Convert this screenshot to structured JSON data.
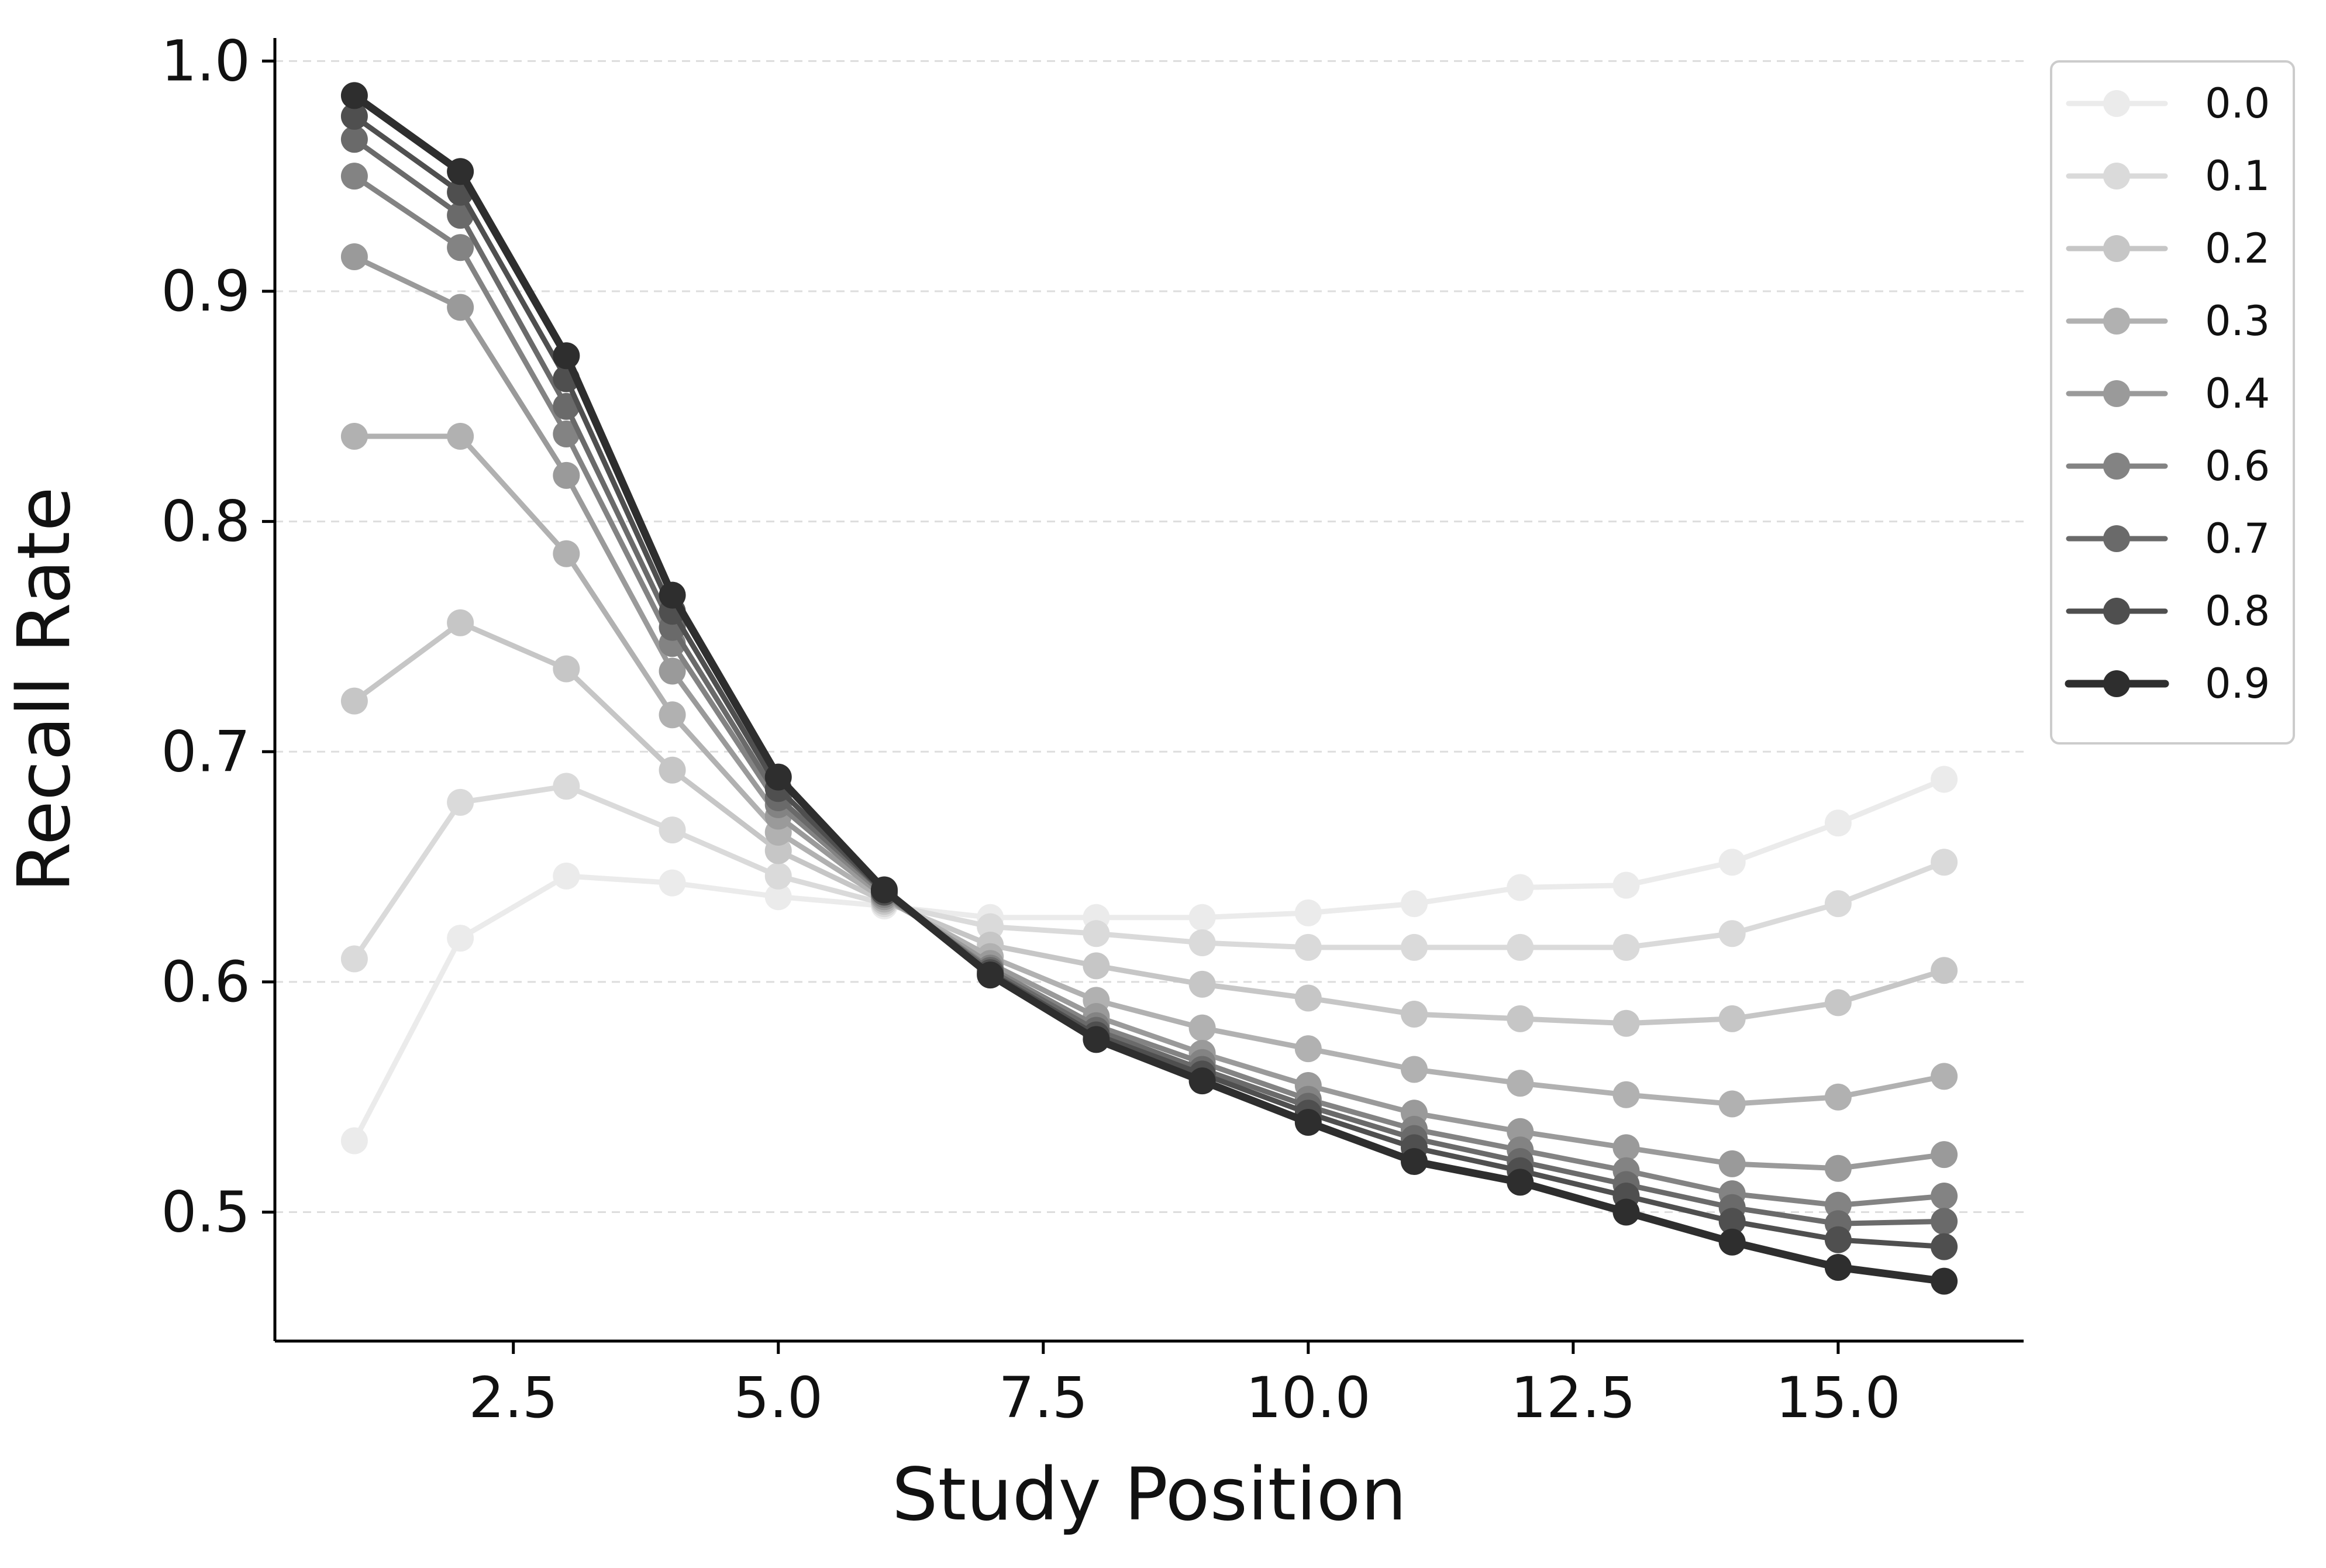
{
  "chart_data": {
    "type": "line",
    "title": "",
    "xlabel": "Study Position",
    "ylabel": "Recall Rate",
    "xlim": [
      0.25,
      16.75
    ],
    "ylim": [
      0.444,
      1.01
    ],
    "xticks": [
      2.5,
      5.0,
      7.5,
      10.0,
      12.5,
      15.0
    ],
    "xtick_labels": [
      "2.5",
      "5.0",
      "7.5",
      "10.0",
      "12.5",
      "15.0"
    ],
    "yticks": [
      0.5,
      0.6,
      0.7,
      0.8,
      0.9,
      1.0
    ],
    "ytick_labels": [
      "0.5",
      "0.6",
      "0.7",
      "0.8",
      "0.9",
      "1.0"
    ],
    "grid": "horizontal-dashed",
    "legend_position": "outside-top-right",
    "x": [
      1,
      2,
      3,
      4,
      5,
      6,
      7,
      8,
      9,
      10,
      11,
      12,
      13,
      14,
      15,
      16
    ],
    "series": [
      {
        "name": "0.0",
        "color": "#ebebeb",
        "values": [
          0.531,
          0.619,
          0.646,
          0.643,
          0.637,
          0.633,
          0.628,
          0.628,
          0.628,
          0.63,
          0.634,
          0.641,
          0.642,
          0.652,
          0.669,
          0.688
        ]
      },
      {
        "name": "0.1",
        "color": "#dadada",
        "values": [
          0.61,
          0.678,
          0.685,
          0.666,
          0.646,
          0.634,
          0.624,
          0.621,
          0.617,
          0.615,
          0.615,
          0.615,
          0.615,
          0.621,
          0.634,
          0.652
        ]
      },
      {
        "name": "0.2",
        "color": "#c6c6c6",
        "values": [
          0.722,
          0.756,
          0.736,
          0.692,
          0.657,
          0.635,
          0.616,
          0.607,
          0.599,
          0.593,
          0.586,
          0.584,
          0.582,
          0.584,
          0.591,
          0.605
        ]
      },
      {
        "name": "0.3",
        "color": "#b1b1b1",
        "values": [
          0.837,
          0.837,
          0.786,
          0.716,
          0.665,
          0.636,
          0.611,
          0.592,
          0.58,
          0.571,
          0.562,
          0.556,
          0.551,
          0.547,
          0.55,
          0.559
        ]
      },
      {
        "name": "0.4",
        "color": "#9a9a9a",
        "values": [
          0.915,
          0.893,
          0.82,
          0.735,
          0.672,
          0.637,
          0.608,
          0.585,
          0.569,
          0.555,
          0.543,
          0.535,
          0.528,
          0.521,
          0.519,
          0.525
        ]
      },
      {
        "name": "0.6",
        "color": "#838383",
        "values": [
          0.95,
          0.919,
          0.838,
          0.747,
          0.677,
          0.638,
          0.606,
          0.581,
          0.565,
          0.549,
          0.536,
          0.527,
          0.518,
          0.508,
          0.503,
          0.507
        ]
      },
      {
        "name": "0.7",
        "color": "#6a6a6a",
        "values": [
          0.966,
          0.933,
          0.85,
          0.754,
          0.68,
          0.639,
          0.605,
          0.579,
          0.562,
          0.546,
          0.532,
          0.522,
          0.512,
          0.502,
          0.495,
          0.496
        ]
      },
      {
        "name": "0.8",
        "color": "#4f4f4f",
        "values": [
          0.976,
          0.943,
          0.862,
          0.761,
          0.684,
          0.639,
          0.604,
          0.577,
          0.56,
          0.543,
          0.528,
          0.518,
          0.507,
          0.496,
          0.488,
          0.485
        ]
      },
      {
        "name": "0.9",
        "color": "#2e2e2e",
        "values": [
          0.985,
          0.952,
          0.872,
          0.768,
          0.689,
          0.64,
          0.603,
          0.575,
          0.557,
          0.539,
          0.522,
          0.513,
          0.5,
          0.487,
          0.476,
          0.47
        ]
      }
    ]
  }
}
